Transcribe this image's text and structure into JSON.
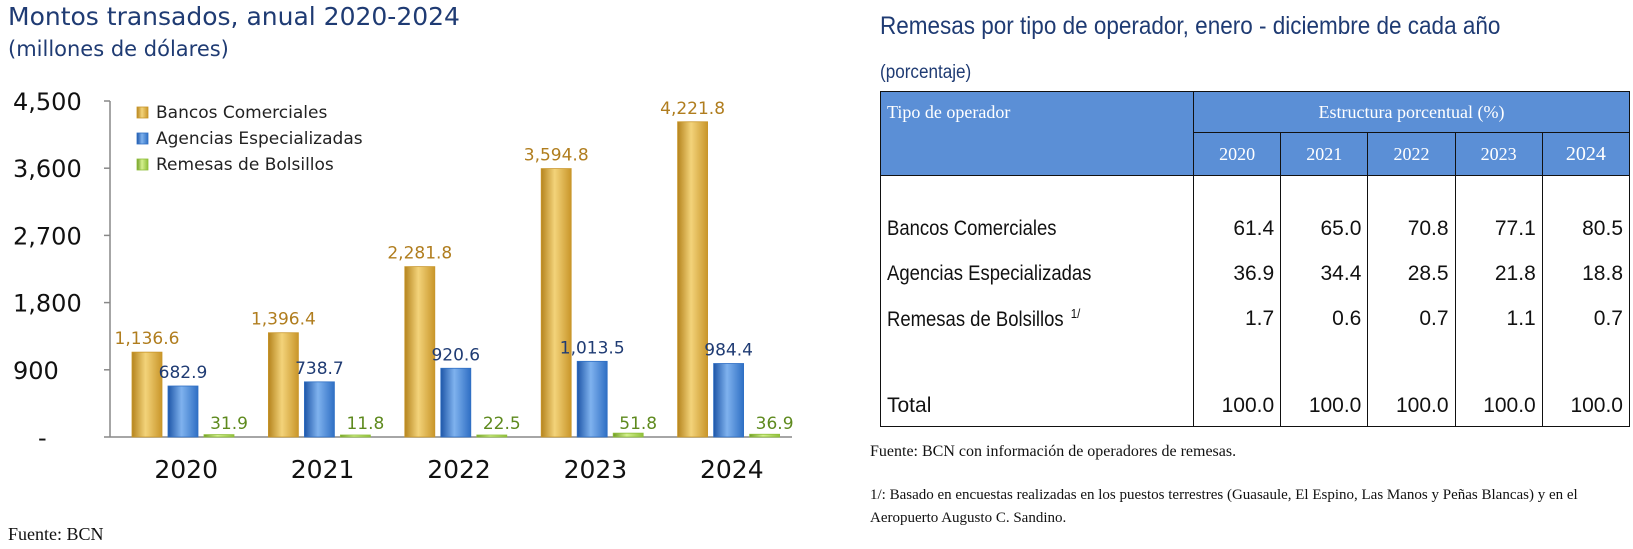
{
  "left_panel": {
    "title": "Montos transados, anual 2020-2024",
    "subtitle": "(millones de dólares)",
    "source": "Fuente: BCN"
  },
  "chart_data": {
    "type": "bar",
    "title": "Montos transados, anual 2020-2024",
    "subtitle": "(millones de dólares)",
    "categories": [
      "2020",
      "2021",
      "2022",
      "2023",
      "2024"
    ],
    "y_ticks": [
      "-",
      "900",
      "1,800",
      "2,700",
      "3,600",
      "4,500"
    ],
    "ylim": [
      0,
      4500
    ],
    "grid": false,
    "legend_position": "top-left",
    "series": [
      {
        "name": "Bancos Comerciales",
        "color": "#c9962a",
        "label_color": "#b07d1e",
        "values": [
          1136.6,
          1396.4,
          2281.8,
          3594.8,
          4221.8
        ],
        "labels": [
          "1,136.6",
          "1,396.4",
          "2,281.8",
          "3,594.8",
          "4,221.8"
        ]
      },
      {
        "name": "Agencias Especializadas",
        "color": "#2f6fc4",
        "label_color": "#1f3b73",
        "values": [
          682.9,
          738.7,
          920.6,
          1013.5,
          984.4
        ],
        "labels": [
          "682.9",
          "738.7",
          "920.6",
          "1,013.5",
          "984.4"
        ]
      },
      {
        "name": "Remesas de Bolsillos",
        "color": "#8fbf3a",
        "label_color": "#5e8a1e",
        "values": [
          31.9,
          11.8,
          22.5,
          51.8,
          36.9
        ],
        "labels": [
          "31.9",
          "11.8",
          "22.5",
          "51.8",
          "36.9"
        ]
      }
    ]
  },
  "right_panel": {
    "title": "Remesas por tipo de operador, enero - diciembre de cada año",
    "subtitle": "(porcentaje)",
    "table": {
      "header_operator": "Tipo de operador",
      "header_structure": "Estructura porcentual (%)",
      "years": [
        "2020",
        "2021",
        "2022",
        "2023",
        "2024"
      ],
      "rows": [
        {
          "name": "Bancos Comerciales",
          "note": "",
          "values": [
            "61.4",
            "65.0",
            "70.8",
            "77.1",
            "80.5"
          ]
        },
        {
          "name": "Agencias Especializadas",
          "note": "",
          "values": [
            "36.9",
            "34.4",
            "28.5",
            "21.8",
            "18.8"
          ]
        },
        {
          "name": "Remesas de Bolsillos",
          "note": "1/",
          "values": [
            "1.7",
            "0.6",
            "0.7",
            "1.1",
            "0.7"
          ]
        }
      ],
      "total": {
        "name": "Total",
        "values": [
          "100.0",
          "100.0",
          "100.0",
          "100.0",
          "100.0"
        ]
      }
    },
    "source": "Fuente: BCN con información de operadores de remesas.",
    "footnote": "1/: Basado en encuestas realizadas en los puestos terrestres (Guasaule, El Espino, Las Manos y Peñas Blancas) y en el Aeropuerto Augusto C. Sandino."
  }
}
